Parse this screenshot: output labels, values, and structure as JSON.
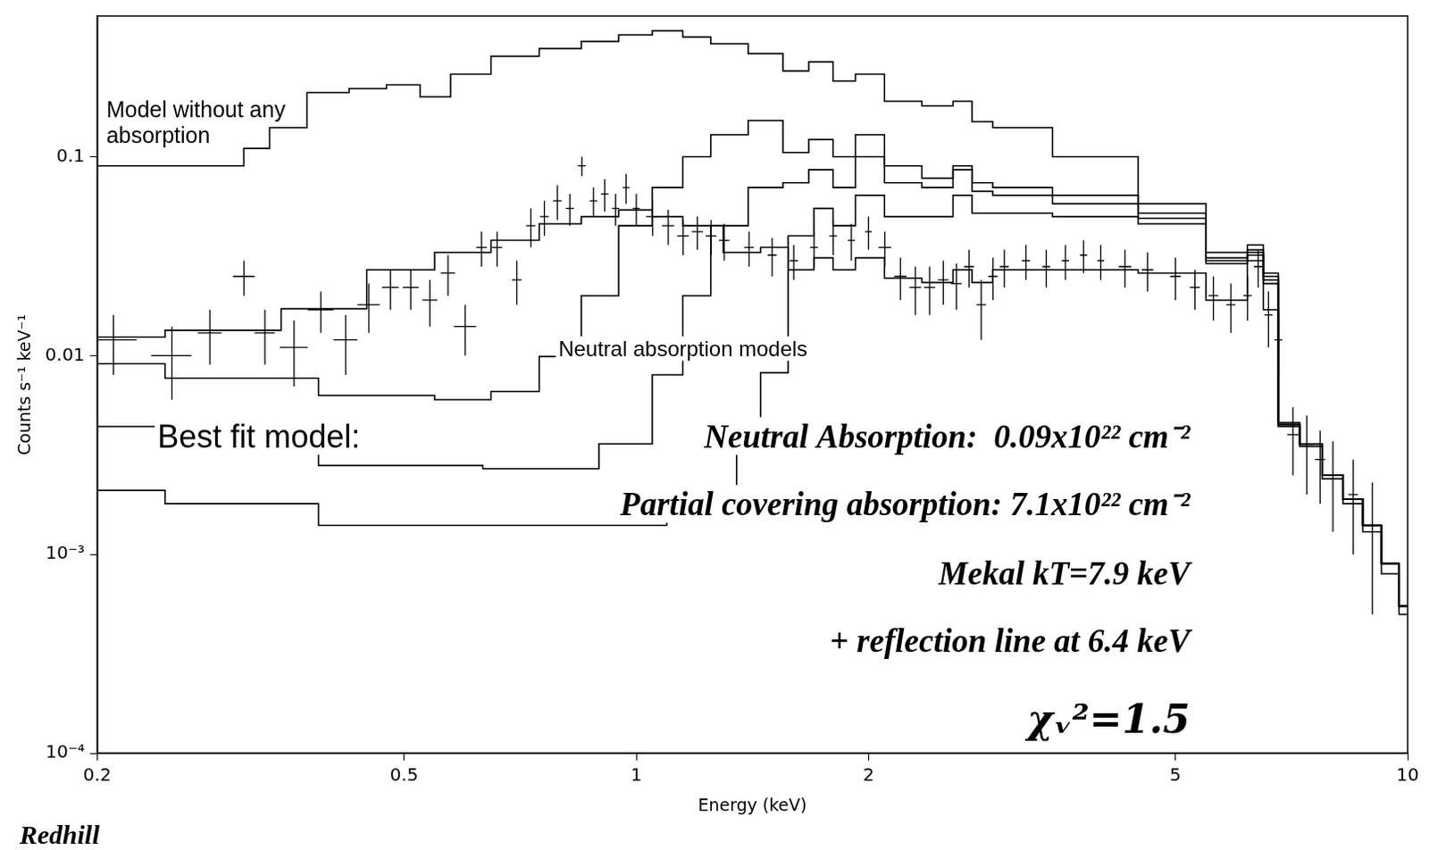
{
  "chart_data": {
    "type": "line",
    "x_label": "Energy (keV)",
    "y_label": "Counts s⁻¹ keV⁻¹",
    "log": true,
    "grid": false,
    "xlim": [
      0.2,
      10
    ],
    "xticks": [
      0.2,
      0.5,
      1,
      2,
      5,
      10
    ],
    "ylim": [
      0.0001,
      0.51
    ],
    "yticks": [
      {
        "value": 0.0001,
        "label": "10⁻⁴"
      },
      {
        "value": 0.001,
        "label": "10⁻³"
      },
      0.01,
      0.1
    ],
    "annotations": [
      "Model without any absorption",
      "Neutral absorption models",
      "Best fit model:",
      "Neutral Absorption:  0.09x10²² cm⁻²",
      "Partial covering absorption: 7.1x10²² cm⁻²",
      "Mekal kT=7.9 keV",
      "+ reflection line at 6.4 keV",
      "χᵥ²=1.5",
      "Redhill"
    ],
    "series": [
      {
        "type": "scatter",
        "color": "#000000",
        "marker": "none",
        "x": [
          0.21,
          0.25,
          0.28,
          0.31,
          0.33,
          0.36,
          0.39,
          0.42,
          0.45,
          0.48,
          0.51,
          0.54,
          0.57,
          0.6,
          0.63,
          0.66,
          0.7,
          0.73,
          0.76,
          0.79,
          0.82,
          0.85,
          0.88,
          0.91,
          0.94,
          0.97,
          1.0,
          1.05,
          1.1,
          1.15,
          1.2,
          1.25,
          1.3,
          1.4,
          1.5,
          1.6,
          1.7,
          1.8,
          1.9,
          2.0,
          2.1,
          2.2,
          2.3,
          2.4,
          2.5,
          2.6,
          2.7,
          2.8,
          2.9,
          3.0,
          3.2,
          3.4,
          3.6,
          3.8,
          4.0,
          4.3,
          4.6,
          5.0,
          5.3,
          5.6,
          5.9,
          6.2,
          6.4,
          6.6,
          6.8,
          7.1,
          7.4,
          7.7,
          8.0,
          8.5,
          9.0
        ],
        "values": [
          0.012,
          0.01,
          0.013,
          0.025,
          0.013,
          0.011,
          0.017,
          0.012,
          0.018,
          0.022,
          0.022,
          0.019,
          0.026,
          0.014,
          0.035,
          0.035,
          0.024,
          0.045,
          0.05,
          0.06,
          0.055,
          0.09,
          0.06,
          0.065,
          0.055,
          0.07,
          0.055,
          0.05,
          0.045,
          0.04,
          0.042,
          0.04,
          0.038,
          0.035,
          0.032,
          0.03,
          0.035,
          0.04,
          0.038,
          0.042,
          0.035,
          0.025,
          0.022,
          0.022,
          0.024,
          0.023,
          0.028,
          0.018,
          0.025,
          0.028,
          0.03,
          0.028,
          0.03,
          0.032,
          0.03,
          0.028,
          0.027,
          0.025,
          0.022,
          0.02,
          0.018,
          0.02,
          0.028,
          0.016,
          0.012,
          0.004,
          0.0035,
          0.003,
          0.0025,
          0.002,
          0.0014
        ],
        "yerr": [
          0.004,
          0.004,
          0.004,
          0.005,
          0.004,
          0.004,
          0.004,
          0.004,
          0.005,
          0.005,
          0.005,
          0.005,
          0.006,
          0.004,
          0.007,
          0.007,
          0.006,
          0.01,
          0.01,
          0.012,
          0.01,
          0.01,
          0.01,
          0.012,
          0.01,
          0.012,
          0.01,
          0.01,
          0.009,
          0.008,
          0.008,
          0.008,
          0.008,
          0.007,
          0.007,
          0.006,
          0.007,
          0.008,
          0.008,
          0.008,
          0.007,
          0.006,
          0.006,
          0.006,
          0.006,
          0.006,
          0.006,
          0.006,
          0.006,
          0.006,
          0.006,
          0.006,
          0.006,
          0.006,
          0.006,
          0.006,
          0.006,
          0.006,
          0.005,
          0.005,
          0.005,
          0.005,
          0.006,
          0.005,
          0.004,
          0.0015,
          0.0015,
          0.0012,
          0.0012,
          0.001,
          0.0009
        ],
        "xerr": [
          0.015,
          0.015,
          0.01,
          0.01,
          0.01,
          0.015,
          0.015,
          0.015,
          0.015,
          0.012,
          0.012,
          0.012,
          0.012,
          0.02,
          0.01,
          0.01,
          0.01,
          0.01,
          0.01,
          0.01,
          0.01,
          0.01,
          0.01,
          0.01,
          0.01,
          0.01,
          0.01,
          0.02,
          0.02,
          0.02,
          0.02,
          0.02,
          0.02,
          0.02,
          0.02,
          0.02,
          0.02,
          0.02,
          0.02,
          0.02,
          0.04,
          0.04,
          0.04,
          0.04,
          0.04,
          0.04,
          0.04,
          0.04,
          0.04,
          0.04,
          0.04,
          0.04,
          0.04,
          0.04,
          0.04,
          0.08,
          0.08,
          0.08,
          0.08,
          0.08,
          0.08,
          0.08,
          0.08,
          0.08,
          0.08,
          0.12,
          0.12,
          0.12,
          0.12,
          0.12,
          0.12
        ]
      },
      {
        "type": "line",
        "color": "#000000",
        "marker": "none",
        "line_style": "steps",
        "x": [
          0.2,
          0.3,
          0.32,
          0.35,
          0.4,
          0.45,
          0.5,
          0.55,
          0.6,
          0.7,
          0.8,
          0.9,
          1.0,
          1.1,
          1.2,
          1.3,
          1.5,
          1.6,
          1.75,
          1.85,
          2.0,
          2.2,
          2.5,
          2.65,
          2.8,
          3.0,
          4.0,
          5.0,
          6.0,
          6.4,
          6.6,
          7.0,
          7.5,
          8.0,
          8.5,
          9.0,
          9.5,
          10.0
        ],
        "values": [
          0.09,
          0.09,
          0.11,
          0.14,
          0.21,
          0.22,
          0.23,
          0.2,
          0.26,
          0.32,
          0.35,
          0.38,
          0.41,
          0.43,
          0.4,
          0.37,
          0.33,
          0.27,
          0.3,
          0.24,
          0.26,
          0.19,
          0.18,
          0.19,
          0.15,
          0.14,
          0.1,
          0.058,
          0.033,
          0.036,
          0.026,
          0.0046,
          0.0036,
          0.0025,
          0.0019,
          0.0014,
          0.0009,
          0.00055
        ]
      },
      {
        "type": "line",
        "color": "#000000",
        "marker": "none",
        "line_style": "steps",
        "x": [
          0.2,
          0.3,
          0.5,
          0.6,
          0.7,
          0.8,
          0.9,
          1.0,
          1.1,
          1.2,
          1.3,
          1.5,
          1.6,
          1.75,
          1.85,
          2.0,
          2.2,
          2.5,
          2.65,
          2.8,
          3.0,
          4.0,
          5.0,
          6.0,
          6.4,
          6.6,
          7.0,
          7.5,
          8.0,
          8.5,
          9.0,
          9.5,
          10.0
        ],
        "values": [
          0.0091,
          0.0077,
          0.0063,
          0.006,
          0.0066,
          0.0099,
          0.02,
          0.045,
          0.07,
          0.1,
          0.129,
          0.152,
          0.105,
          0.122,
          0.1,
          0.129,
          0.09,
          0.078,
          0.09,
          0.074,
          0.07,
          0.064,
          0.052,
          0.031,
          0.034,
          0.025,
          0.0045,
          0.0036,
          0.0025,
          0.0019,
          0.0014,
          0.0009,
          0.00055
        ]
      },
      {
        "type": "line",
        "color": "#000000",
        "marker": "none",
        "line_style": "steps",
        "x": [
          0.2,
          0.3,
          0.5,
          0.8,
          1.0,
          1.1,
          1.2,
          1.3,
          1.5,
          1.6,
          1.75,
          1.85,
          2.0,
          2.2,
          2.5,
          2.65,
          2.8,
          3.0,
          4.0,
          5.0,
          6.0,
          6.4,
          6.6,
          7.0,
          7.5,
          8.0,
          8.5,
          9.0,
          9.5,
          10.0
        ],
        "values": [
          0.0044,
          0.0037,
          0.0028,
          0.0027,
          0.0036,
          0.008,
          0.02,
          0.045,
          0.07,
          0.074,
          0.086,
          0.07,
          0.1,
          0.074,
          0.07,
          0.086,
          0.067,
          0.064,
          0.058,
          0.049,
          0.03,
          0.033,
          0.024,
          0.0045,
          0.0036,
          0.0025,
          0.0019,
          0.0014,
          0.0009,
          0.00055
        ]
      },
      {
        "type": "line",
        "color": "#000000",
        "marker": "none",
        "line_style": "steps",
        "x": [
          0.2,
          0.3,
          0.5,
          1.0,
          1.2,
          1.3,
          1.4,
          1.5,
          1.65,
          1.75,
          1.85,
          2.0,
          2.2,
          2.5,
          2.65,
          2.8,
          3.0,
          4.0,
          5.0,
          6.0,
          6.4,
          6.6,
          7.0,
          7.5,
          8.0,
          8.5,
          9.0,
          9.5,
          10.0
        ],
        "values": [
          0.0021,
          0.0018,
          0.0014,
          0.0014,
          0.0015,
          0.002,
          0.0044,
          0.0082,
          0.04,
          0.055,
          0.045,
          0.064,
          0.05,
          0.05,
          0.064,
          0.052,
          0.052,
          0.05,
          0.046,
          0.029,
          0.032,
          0.023,
          0.0044,
          0.0035,
          0.0025,
          0.0019,
          0.0014,
          0.0009,
          0.00055
        ]
      },
      {
        "type": "line",
        "color": "#000000",
        "marker": "none",
        "line_style": "steps",
        "x": [
          0.2,
          0.3,
          0.4,
          0.5,
          0.6,
          0.7,
          0.8,
          0.9,
          1.0,
          1.1,
          1.2,
          1.4,
          1.5,
          1.65,
          1.75,
          1.85,
          2.0,
          2.2,
          2.5,
          2.65,
          2.8,
          3.0,
          4.0,
          5.0,
          6.0,
          6.4,
          6.6,
          7.0,
          7.5,
          8.0,
          8.5,
          9.0,
          9.5,
          10.0
        ],
        "values": [
          0.0124,
          0.0134,
          0.0172,
          0.027,
          0.033,
          0.038,
          0.046,
          0.05,
          0.054,
          0.05,
          0.045,
          0.033,
          0.035,
          0.027,
          0.031,
          0.027,
          0.031,
          0.0245,
          0.0233,
          0.027,
          0.0233,
          0.027,
          0.027,
          0.026,
          0.019,
          0.03,
          0.017,
          0.0044,
          0.0035,
          0.0024,
          0.0018,
          0.0013,
          0.0008,
          0.0005
        ]
      }
    ]
  }
}
